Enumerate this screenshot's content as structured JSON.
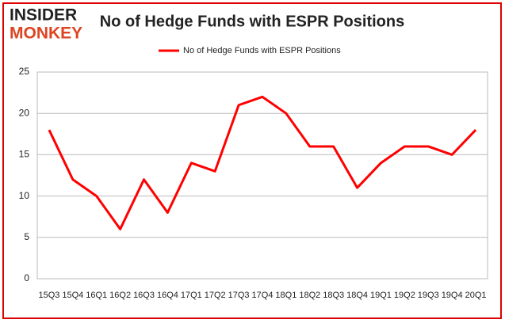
{
  "logo": {
    "top": "INSIDER",
    "bottom": "MONKEY"
  },
  "chart_data": {
    "type": "line",
    "title": "No of Hedge Funds with ESPR Positions",
    "categories": [
      "15Q3",
      "15Q4",
      "16Q1",
      "16Q2",
      "16Q3",
      "16Q4",
      "17Q1",
      "17Q2",
      "17Q3",
      "17Q4",
      "18Q1",
      "18Q2",
      "18Q3",
      "18Q4",
      "19Q1",
      "19Q2",
      "19Q3",
      "19Q4",
      "20Q1"
    ],
    "series": [
      {
        "name": "No of Hedge Funds with ESPR Positions",
        "color": "#ff0000",
        "values": [
          18,
          12,
          10,
          6,
          12,
          8,
          14,
          13,
          21,
          22,
          20,
          16,
          16,
          11,
          14,
          16,
          16,
          15,
          18
        ]
      }
    ],
    "ylim": [
      0,
      25
    ],
    "yticks": [
      0,
      5,
      10,
      15,
      20,
      25
    ],
    "grid": true,
    "legend": "top"
  }
}
